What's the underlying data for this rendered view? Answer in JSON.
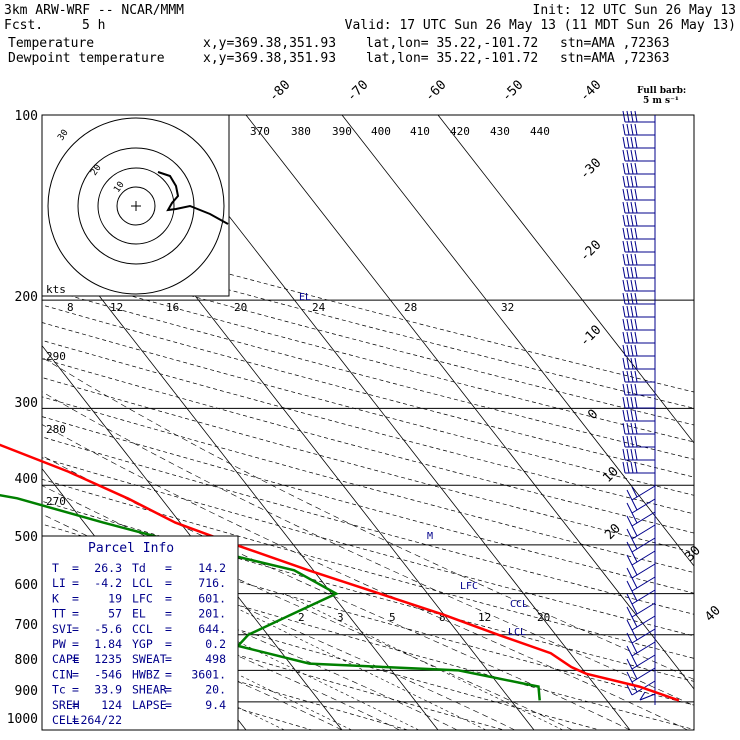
{
  "header": {
    "left1": "3km ARW-WRF -- NCAR/MMM",
    "left2_label": "Fcst.",
    "left2_value": "5 h",
    "init": "Init: 12 UTC Sun 26 May 13",
    "valid": "Valid: 17 UTC Sun 26 May 13 (11 MDT Sun 26 May 13)"
  },
  "series_labels": [
    {
      "name": "Temperature",
      "coords": "x,y=369.38,351.93",
      "latlon": "lat,lon= 35.22,-101.72",
      "stn": "stn=AMA ,72363",
      "color": "#ff0000"
    },
    {
      "name": "Dewpoint temperature",
      "coords": "x,y=369.38,351.93",
      "latlon": "lat,lon= 35.22,-101.72",
      "stn": "stn=AMA ,72363",
      "color": "#008000"
    }
  ],
  "barb_legend": {
    "line1": "Full barb:",
    "line2": "5 m s⁻¹"
  },
  "hodograph": {
    "units": "kts",
    "ring_labels": [
      "10",
      "20",
      "30"
    ],
    "speed_labels": [
      "8",
      "12",
      "16",
      "20",
      "24",
      "28",
      "32"
    ]
  },
  "parcel_info": {
    "title": "Parcel Info",
    "rows": [
      [
        "T",
        "26.3",
        "Td",
        "14.2"
      ],
      [
        "LI",
        "-4.2",
        "LCL",
        "716."
      ],
      [
        "K",
        "19",
        "LFC",
        "601."
      ],
      [
        "TT",
        "57",
        "EL",
        "201."
      ],
      [
        "SVI",
        "-5.6",
        "CCL",
        "644."
      ],
      [
        "PW",
        "1.84",
        "YGP",
        "0.2"
      ],
      [
        "CAPE",
        "1235",
        "SWEAT",
        "498"
      ],
      [
        "CIN",
        "-546",
        "HWBZ",
        "3601."
      ],
      [
        "Tc",
        "33.9",
        "SHEAR",
        "20."
      ],
      [
        "SREH",
        "124",
        "LAPSE",
        "9.4"
      ],
      [
        "CELL",
        "264/22",
        "",
        ""
      ]
    ]
  },
  "annotations": {
    "el": "EL",
    "lfc": "LFC",
    "ccl": "CCL",
    "lcl": "LCL",
    "m": "M"
  },
  "chart_data": {
    "type": "line",
    "chart_kind": "skew-T log-p sounding",
    "y_axis": {
      "label": "pressure (hPa)",
      "scale": "log",
      "ticks": [
        100,
        200,
        300,
        400,
        500,
        600,
        700,
        800,
        900,
        1000
      ]
    },
    "isotherm_labels": [
      "-80",
      "-70",
      "-60",
      "-50",
      "-40",
      "-30",
      "-20",
      "-10",
      "0",
      "10",
      "20",
      "30",
      "40"
    ],
    "theta_labels": [
      "370",
      "380",
      "390",
      "400",
      "410",
      "420",
      "430",
      "440"
    ],
    "dry_adiabat_labels": [
      "290",
      "280",
      "270"
    ],
    "mixing_ratio_labels": [
      "2",
      "3",
      "5",
      "8",
      "12",
      "20"
    ],
    "series": [
      {
        "name": "Temperature",
        "color": "#ff0000",
        "points": [
          [
            895,
            27.5
          ],
          [
            850,
            24.5
          ],
          [
            810,
            20
          ],
          [
            790,
            19
          ],
          [
            750,
            18
          ],
          [
            700,
            14
          ],
          [
            650,
            10
          ],
          [
            600,
            5
          ],
          [
            550,
            -0.5
          ],
          [
            500,
            -6
          ],
          [
            460,
            -10.5
          ],
          [
            420,
            -13.5
          ],
          [
            380,
            -17.5
          ],
          [
            340,
            -23
          ],
          [
            300,
            -29
          ],
          [
            270,
            -34
          ],
          [
            240,
            -42
          ],
          [
            215,
            -49
          ],
          [
            200,
            -54
          ],
          [
            185,
            -56
          ],
          [
            165,
            -59
          ],
          [
            145,
            -61
          ],
          [
            130,
            -63
          ],
          [
            118,
            -64
          ],
          [
            110,
            -66
          ],
          [
            100,
            -67
          ]
        ]
      },
      {
        "name": "Dewpoint temperature",
        "color": "#008000",
        "points": [
          [
            895,
            13
          ],
          [
            850,
            14
          ],
          [
            800,
            7
          ],
          [
            780,
            -8
          ],
          [
            730,
            -14
          ],
          [
            700,
            -12
          ],
          [
            650,
            -6
          ],
          [
            600,
            0.5
          ],
          [
            550,
            -2
          ],
          [
            500,
            -11
          ],
          [
            460,
            -18
          ],
          [
            420,
            -25
          ],
          [
            390,
            -35
          ],
          [
            350,
            -36
          ],
          [
            310,
            -39
          ],
          [
            280,
            -46
          ],
          [
            240,
            -60
          ],
          [
            200,
            -71
          ],
          [
            175,
            -75
          ],
          [
            150,
            -79
          ],
          [
            130,
            -82
          ],
          [
            115,
            -84
          ],
          [
            100,
            -86
          ]
        ]
      }
    ]
  }
}
